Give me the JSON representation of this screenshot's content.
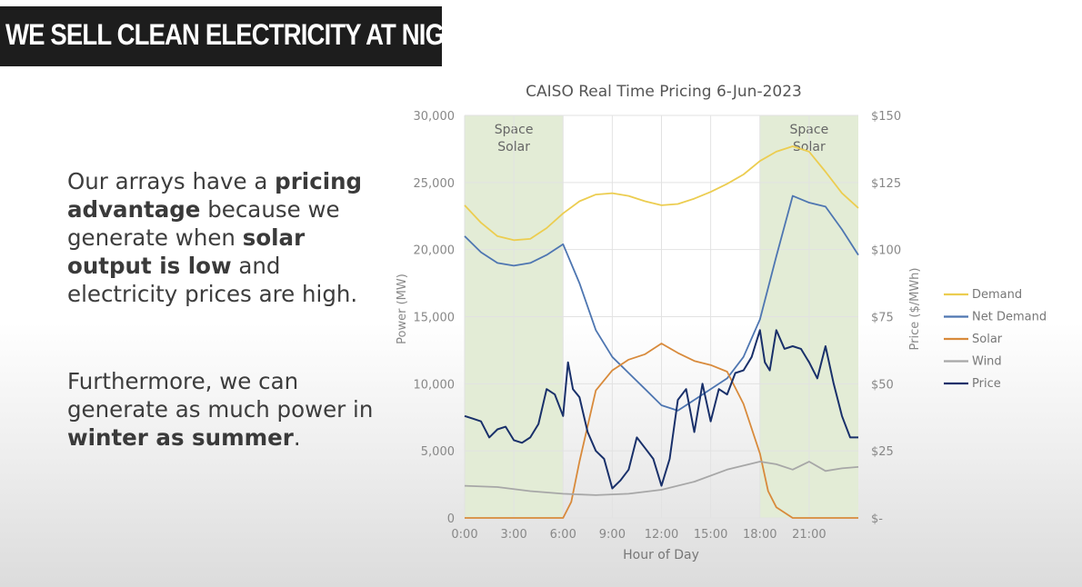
{
  "banner": {
    "title": "WE SELL CLEAN ELECTRICITY AT NIGHT"
  },
  "paragraph1": {
    "t1": "Our arrays have a ",
    "b1": "pricing advantage",
    "t2": " because we generate when ",
    "b2": "solar output is low",
    "t3": " and electricity prices are high."
  },
  "paragraph2": {
    "t1": "Furthermore, we can generate as much power in ",
    "b1": "winter as summer",
    "t2": "."
  },
  "colors": {
    "Demand": "#eccd50",
    "Net Demand": "#4e76b1",
    "Solar": "#d88a3b",
    "Wind": "#a7a7a7",
    "Price": "#19306a",
    "shade": "#e3ecd6"
  },
  "chart_data": {
    "type": "line",
    "title": "CAISO Real Time Pricing 6-Jun-2023",
    "xlabel": "Hour of Day",
    "ylabel": "Power (MW)",
    "ylabel2": "Price ($/MWh)",
    "x_ticks": [
      "0:00",
      "3:00",
      "6:00",
      "9:00",
      "12:00",
      "15:00",
      "18:00",
      "21:00"
    ],
    "xlim": [
      0,
      24
    ],
    "ylim": [
      0,
      30000
    ],
    "y_ticks": [
      "0",
      "5,000",
      "10,000",
      "15,000",
      "20,000",
      "25,000",
      "30,000"
    ],
    "y2lim": [
      0,
      150
    ],
    "y2_ticks": [
      "$-",
      "$25",
      "$50",
      "$75",
      "$100",
      "$125",
      "$150"
    ],
    "grid": true,
    "legend_position": "right",
    "shaded_regions": [
      {
        "x": [
          0,
          6
        ],
        "label": [
          "Space",
          "Solar"
        ]
      },
      {
        "x": [
          18,
          24
        ],
        "label": [
          "Space",
          "Solar"
        ]
      }
    ],
    "series": [
      {
        "name": "Demand",
        "axis": "left",
        "x": [
          0,
          1,
          2,
          3,
          4,
          5,
          6,
          7,
          8,
          9,
          10,
          11,
          12,
          13,
          14,
          15,
          16,
          17,
          18,
          19,
          20,
          21,
          22,
          23,
          24
        ],
        "values": [
          23300,
          22000,
          21000,
          20700,
          20800,
          21600,
          22700,
          23600,
          24100,
          24200,
          24000,
          23600,
          23300,
          23400,
          23800,
          24300,
          24900,
          25600,
          26600,
          27300,
          27700,
          27300,
          25800,
          24200,
          23100
        ]
      },
      {
        "name": "Net Demand",
        "axis": "left",
        "x": [
          0,
          1,
          2,
          3,
          4,
          5,
          6,
          7,
          8,
          9,
          10,
          11,
          12,
          13,
          14,
          15,
          16,
          17,
          18,
          19,
          20,
          21,
          22,
          23,
          24
        ],
        "values": [
          21000,
          19800,
          19000,
          18800,
          19000,
          19600,
          20400,
          17500,
          14000,
          12000,
          10800,
          9600,
          8400,
          8000,
          8800,
          9600,
          10400,
          12000,
          14800,
          19500,
          24000,
          23500,
          23200,
          21500,
          19600
        ]
      },
      {
        "name": "Solar",
        "axis": "left",
        "x": [
          0,
          5,
          6,
          6.5,
          7,
          8,
          9,
          10,
          11,
          12,
          13,
          14,
          15,
          16,
          17,
          18,
          18.5,
          19,
          20,
          21,
          24
        ],
        "values": [
          0,
          0,
          0,
          1200,
          4200,
          9500,
          11000,
          11800,
          12200,
          13000,
          12300,
          11700,
          11400,
          10900,
          8500,
          4800,
          2000,
          800,
          0,
          0,
          0
        ]
      },
      {
        "name": "Wind",
        "axis": "left",
        "x": [
          0,
          2,
          4,
          6,
          8,
          10,
          12,
          14,
          16,
          17,
          18,
          19,
          20,
          21,
          22,
          23,
          24
        ],
        "values": [
          2400,
          2300,
          2000,
          1800,
          1700,
          1800,
          2100,
          2700,
          3600,
          3900,
          4200,
          4000,
          3600,
          4200,
          3500,
          3700,
          3800
        ]
      },
      {
        "name": "Price",
        "axis": "right",
        "x": [
          0,
          0.5,
          1,
          1.5,
          2,
          2.5,
          3,
          3.5,
          4,
          4.5,
          5,
          5.5,
          6,
          6.3,
          6.6,
          7,
          7.5,
          8,
          8.5,
          9,
          9.5,
          10,
          10.5,
          11,
          11.5,
          12,
          12.5,
          13,
          13.5,
          14,
          14.5,
          15,
          15.5,
          16,
          16.5,
          17,
          17.5,
          18,
          18.3,
          18.6,
          19,
          19.5,
          20,
          20.5,
          21,
          21.5,
          22,
          22.5,
          23,
          23.5,
          24
        ],
        "values": [
          38,
          37,
          36,
          30,
          33,
          34,
          29,
          28,
          30,
          35,
          48,
          46,
          38,
          58,
          48,
          45,
          32,
          25,
          22,
          11,
          14,
          18,
          30,
          26,
          22,
          12,
          22,
          44,
          48,
          32,
          50,
          36,
          48,
          46,
          54,
          55,
          60,
          70,
          58,
          55,
          70,
          63,
          64,
          63,
          58,
          52,
          64,
          50,
          38,
          30,
          30
        ]
      }
    ]
  }
}
